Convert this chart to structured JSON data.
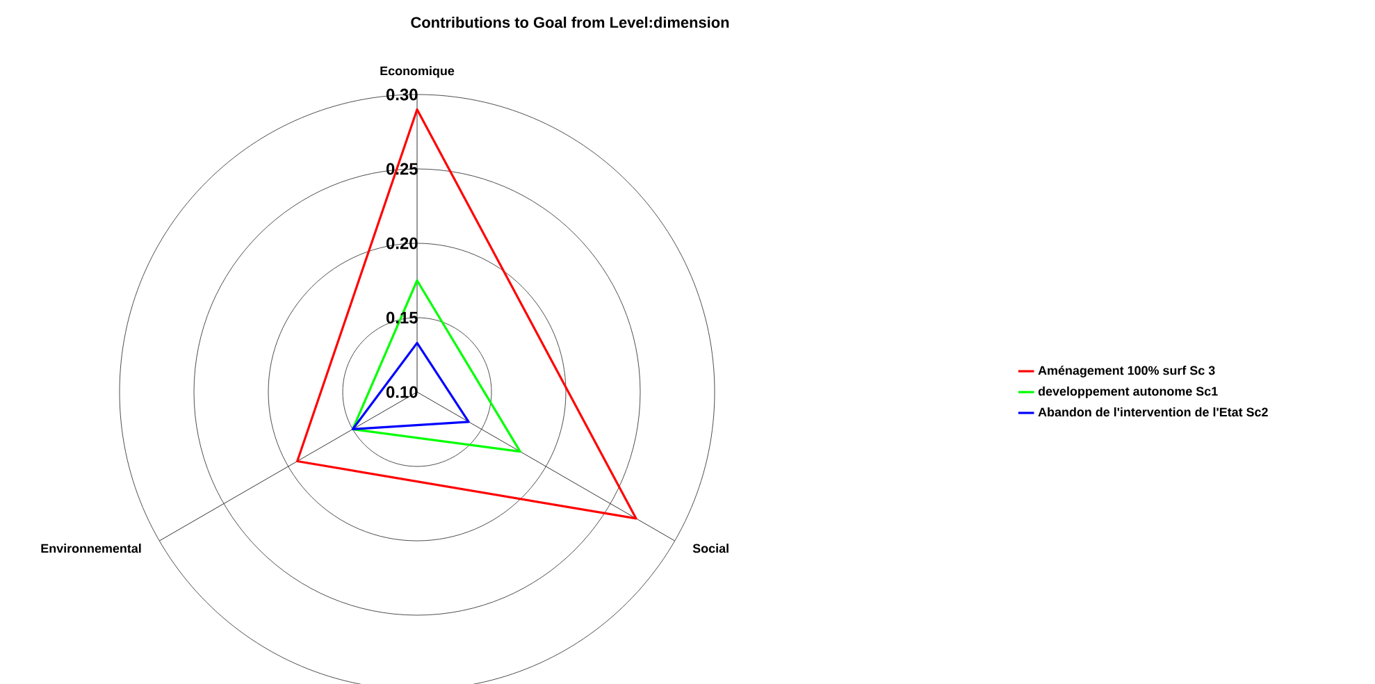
{
  "chart_data": {
    "type": "radar",
    "title": "Contributions to Goal from Level:dimension",
    "categories": [
      "Economique",
      "Social",
      "Environnemental"
    ],
    "ylim": [
      0.1,
      0.3
    ],
    "yticks": [
      {
        "value": 0.1,
        "label": "0.10"
      },
      0.15,
      {
        "value": 0.2,
        "label": "0.20"
      },
      0.25,
      {
        "value": 0.3,
        "label": "0.30"
      }
    ],
    "grid": true,
    "legend": "right",
    "series": [
      {
        "name": "Aménagement 100% surf Sc 3",
        "color": "#ff0000",
        "values": [
          0.29,
          0.27,
          0.193
        ]
      },
      {
        "name": "developpement autonome Sc1",
        "color": "#00ff00",
        "values": [
          0.175,
          0.18,
          0.15
        ]
      },
      {
        "name": "Abandon de l'intervention de l'Etat Sc2",
        "color": "#0000ff",
        "values": [
          0.133,
          0.14,
          0.15
        ]
      }
    ]
  }
}
